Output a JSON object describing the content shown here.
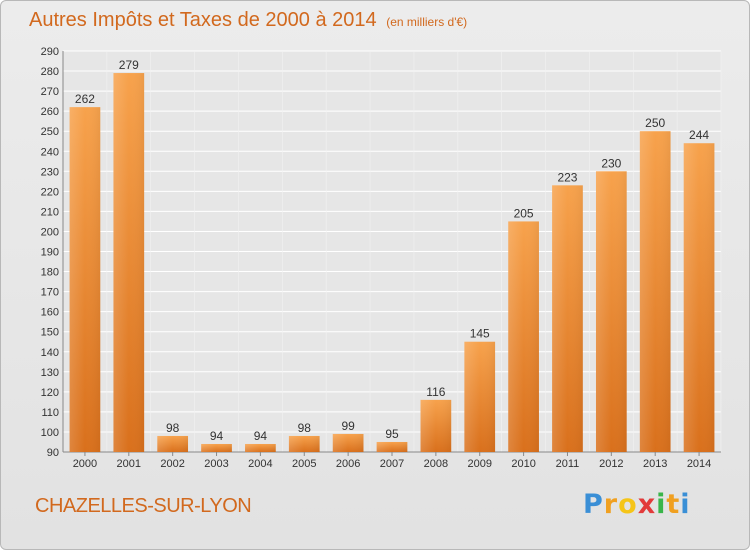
{
  "chart_data": {
    "type": "bar",
    "title": "Autres Impôts et Taxes de 2000 à 2014",
    "subtitle": "(en milliers d'€)",
    "categories": [
      "2000",
      "2001",
      "2002",
      "2003",
      "2004",
      "2005",
      "2006",
      "2007",
      "2008",
      "2009",
      "2010",
      "2011",
      "2012",
      "2013",
      "2014"
    ],
    "values": [
      262,
      279,
      98,
      94,
      94,
      98,
      99,
      95,
      116,
      145,
      205,
      223,
      230,
      250,
      244
    ],
    "ylim": [
      90,
      290
    ],
    "yticks": [
      90,
      100,
      110,
      120,
      130,
      140,
      150,
      160,
      170,
      180,
      190,
      200,
      210,
      220,
      230,
      240,
      250,
      260,
      270,
      280,
      290
    ],
    "grid": true,
    "bar_color": "#f0862a"
  },
  "place_name": "CHAZELLES-SUR-LYON",
  "brand": {
    "text": "Proxiti",
    "letters": [
      "P",
      "r",
      "o",
      "x",
      "i",
      "t",
      "i"
    ],
    "colors": [
      "#3a8fd6",
      "#f0a020",
      "#f5c518",
      "#e23a3a",
      "#39b54a",
      "#f0a020",
      "#3a8fd6"
    ]
  }
}
